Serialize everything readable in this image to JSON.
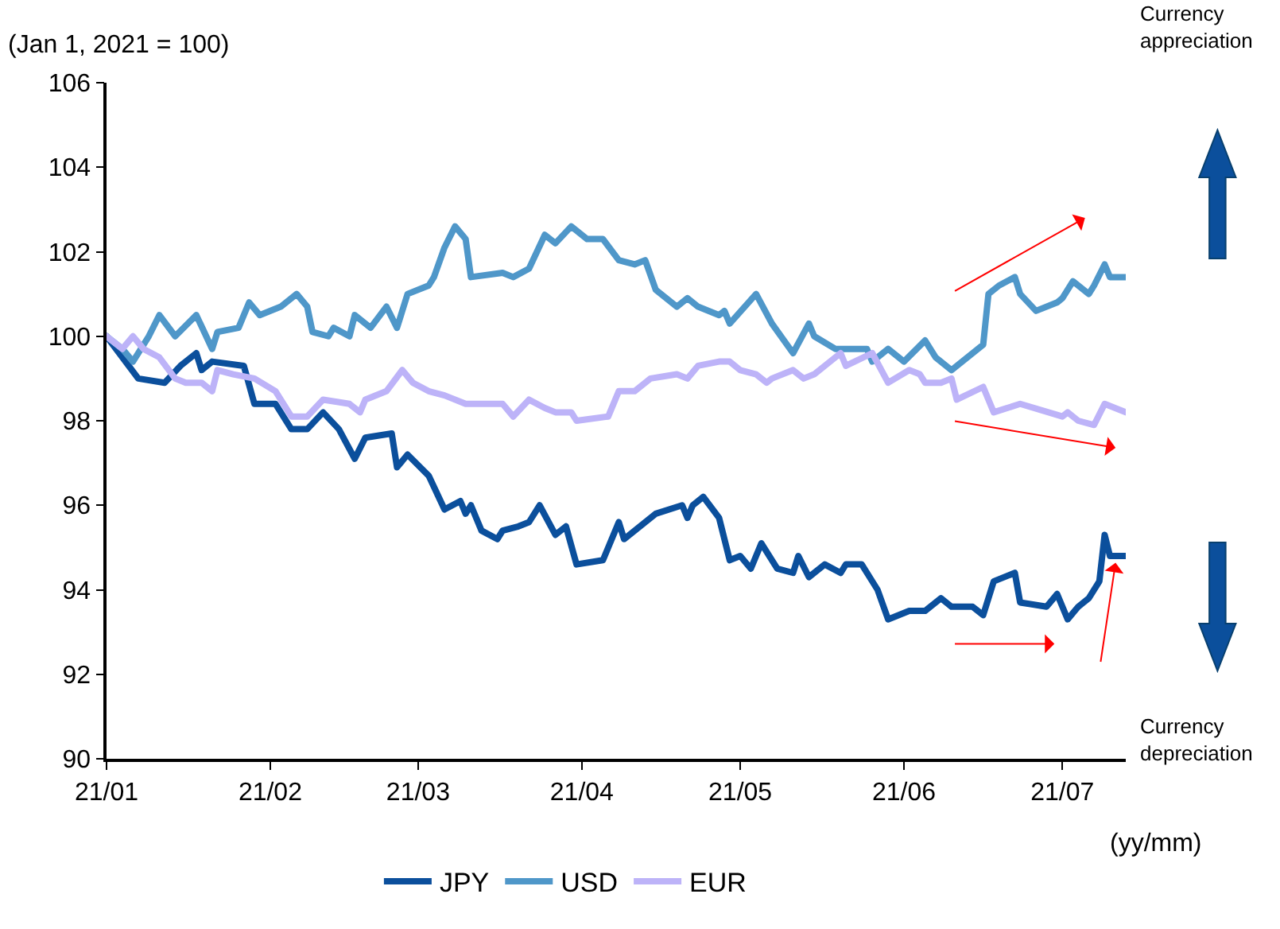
{
  "chart_data": {
    "type": "line",
    "ylabel": "(Jan 1, 2021 = 100)",
    "xlabel": "(yy/mm)",
    "annotations": [
      "Currency appreciation",
      "Currency depreciation"
    ],
    "xlim": [
      "2021-01-01",
      "2021-07-13"
    ],
    "xticks": [
      {
        "value": "2021-01-01",
        "label": "21/01"
      },
      {
        "value": "2021-02-01",
        "label": "21/02"
      },
      {
        "value": "2021-03-01",
        "label": "21/03"
      },
      {
        "value": "2021-04-01",
        "label": "21/04"
      },
      {
        "value": "2021-05-01",
        "label": "21/05"
      },
      {
        "value": "2021-06-01",
        "label": "21/06"
      },
      {
        "value": "2021-07-01",
        "label": "21/07"
      }
    ],
    "ylim": [
      90,
      106
    ],
    "yticks": [
      90,
      92,
      94,
      96,
      98,
      100,
      102,
      104,
      106
    ],
    "grid": false,
    "legend": "bottom",
    "marker": "none",
    "line_style": "solid",
    "series": [
      {
        "name": "JPY",
        "color": "#0b4f9c",
        "x": [
          "2021-01-01",
          "2021-01-07",
          "2021-01-12",
          "2021-01-15",
          "2021-01-18",
          "2021-01-19",
          "2021-01-21",
          "2021-01-27",
          "2021-01-29",
          "2021-02-02",
          "2021-02-05",
          "2021-02-08",
          "2021-02-11",
          "2021-02-14",
          "2021-02-17",
          "2021-02-19",
          "2021-02-24",
          "2021-02-25",
          "2021-02-27",
          "2021-03-03",
          "2021-03-06",
          "2021-03-09",
          "2021-03-10",
          "2021-03-11",
          "2021-03-13",
          "2021-03-16",
          "2021-03-17",
          "2021-03-20",
          "2021-03-22",
          "2021-03-24",
          "2021-03-27",
          "2021-03-29",
          "2021-03-31",
          "2021-04-05",
          "2021-04-08",
          "2021-04-09",
          "2021-04-15",
          "2021-04-20",
          "2021-04-21",
          "2021-04-22",
          "2021-04-24",
          "2021-04-27",
          "2021-04-29",
          "2021-05-01",
          "2021-05-03",
          "2021-05-05",
          "2021-05-08",
          "2021-05-11",
          "2021-05-12",
          "2021-05-14",
          "2021-05-17",
          "2021-05-20",
          "2021-05-21",
          "2021-05-24",
          "2021-05-27",
          "2021-05-29",
          "2021-06-02",
          "2021-06-05",
          "2021-06-08",
          "2021-06-10",
          "2021-06-14",
          "2021-06-16",
          "2021-06-18",
          "2021-06-22",
          "2021-06-23",
          "2021-06-28",
          "2021-06-30",
          "2021-07-02",
          "2021-07-04",
          "2021-07-06",
          "2021-07-08",
          "2021-07-09",
          "2021-07-10",
          "2021-07-13"
        ],
        "values": [
          100.0,
          99.0,
          98.9,
          99.3,
          99.6,
          99.2,
          99.4,
          99.3,
          98.4,
          98.4,
          97.8,
          97.8,
          98.2,
          97.8,
          97.1,
          97.6,
          97.7,
          96.9,
          97.2,
          96.7,
          95.9,
          96.1,
          95.8,
          96.0,
          95.4,
          95.2,
          95.4,
          95.5,
          95.6,
          96.0,
          95.3,
          95.5,
          94.6,
          94.7,
          95.6,
          95.2,
          95.8,
          96.0,
          95.7,
          96.0,
          96.2,
          95.7,
          94.7,
          94.8,
          94.5,
          95.1,
          94.5,
          94.4,
          94.8,
          94.3,
          94.6,
          94.4,
          94.6,
          94.6,
          94.0,
          93.3,
          93.5,
          93.5,
          93.8,
          93.6,
          93.6,
          93.4,
          94.2,
          94.4,
          93.7,
          93.6,
          93.9,
          93.3,
          93.6,
          93.8,
          94.2,
          95.3,
          94.8,
          94.8
        ]
      },
      {
        "name": "USD",
        "color": "#4f97c9",
        "x": [
          "2021-01-01",
          "2021-01-04",
          "2021-01-06",
          "2021-01-09",
          "2021-01-11",
          "2021-01-14",
          "2021-01-18",
          "2021-01-21",
          "2021-01-22",
          "2021-01-26",
          "2021-01-28",
          "2021-01-30",
          "2021-02-03",
          "2021-02-06",
          "2021-02-08",
          "2021-02-09",
          "2021-02-12",
          "2021-02-13",
          "2021-02-16",
          "2021-02-17",
          "2021-02-20",
          "2021-02-23",
          "2021-02-25",
          "2021-02-27",
          "2021-03-03",
          "2021-03-04",
          "2021-03-06",
          "2021-03-08",
          "2021-03-10",
          "2021-03-11",
          "2021-03-17",
          "2021-03-19",
          "2021-03-22",
          "2021-03-25",
          "2021-03-27",
          "2021-03-30",
          "2021-04-02",
          "2021-04-05",
          "2021-04-08",
          "2021-04-11",
          "2021-04-13",
          "2021-04-15",
          "2021-04-19",
          "2021-04-21",
          "2021-04-23",
          "2021-04-27",
          "2021-04-28",
          "2021-04-29",
          "2021-05-04",
          "2021-05-07",
          "2021-05-11",
          "2021-05-14",
          "2021-05-15",
          "2021-05-19",
          "2021-05-25",
          "2021-05-26",
          "2021-05-29",
          "2021-06-01",
          "2021-06-05",
          "2021-06-07",
          "2021-06-10",
          "2021-06-16",
          "2021-06-17",
          "2021-06-19",
          "2021-06-22",
          "2021-06-23",
          "2021-06-26",
          "2021-06-30",
          "2021-07-01",
          "2021-07-03",
          "2021-07-06",
          "2021-07-07",
          "2021-07-09",
          "2021-07-10",
          "2021-07-13"
        ],
        "values": [
          100.0,
          99.7,
          99.4,
          100.0,
          100.5,
          100.0,
          100.5,
          99.7,
          100.1,
          100.2,
          100.8,
          100.5,
          100.7,
          101.0,
          100.7,
          100.1,
          100.0,
          100.2,
          100.0,
          100.5,
          100.2,
          100.7,
          100.2,
          101.0,
          101.2,
          101.4,
          102.1,
          102.6,
          102.3,
          101.4,
          101.5,
          101.4,
          101.6,
          102.4,
          102.2,
          102.6,
          102.3,
          102.3,
          101.8,
          101.7,
          101.8,
          101.1,
          100.7,
          100.9,
          100.7,
          100.5,
          100.6,
          100.3,
          101.0,
          100.3,
          99.6,
          100.3,
          100.0,
          99.7,
          99.7,
          99.4,
          99.7,
          99.4,
          99.9,
          99.5,
          99.2,
          99.8,
          101.0,
          101.2,
          101.4,
          101.0,
          100.6,
          100.8,
          100.9,
          101.3,
          101.0,
          101.2,
          101.7,
          101.4,
          101.4
        ]
      },
      {
        "name": "EUR",
        "color": "#bdb3f8",
        "x": [
          "2021-01-01",
          "2021-01-04",
          "2021-01-06",
          "2021-01-08",
          "2021-01-11",
          "2021-01-14",
          "2021-01-16",
          "2021-01-19",
          "2021-01-21",
          "2021-01-22",
          "2021-01-25",
          "2021-01-29",
          "2021-02-02",
          "2021-02-05",
          "2021-02-08",
          "2021-02-11",
          "2021-02-16",
          "2021-02-18",
          "2021-02-19",
          "2021-02-23",
          "2021-02-26",
          "2021-02-28",
          "2021-03-03",
          "2021-03-06",
          "2021-03-10",
          "2021-03-17",
          "2021-03-19",
          "2021-03-22",
          "2021-03-25",
          "2021-03-27",
          "2021-03-30",
          "2021-03-31",
          "2021-04-06",
          "2021-04-08",
          "2021-04-11",
          "2021-04-14",
          "2021-04-19",
          "2021-04-21",
          "2021-04-23",
          "2021-04-27",
          "2021-04-29",
          "2021-05-01",
          "2021-05-04",
          "2021-05-06",
          "2021-05-07",
          "2021-05-11",
          "2021-05-13",
          "2021-05-15",
          "2021-05-20",
          "2021-05-21",
          "2021-05-26",
          "2021-05-29",
          "2021-06-02",
          "2021-06-04",
          "2021-06-05",
          "2021-06-08",
          "2021-06-10",
          "2021-06-11",
          "2021-06-16",
          "2021-06-18",
          "2021-06-23",
          "2021-07-01",
          "2021-07-02",
          "2021-07-04",
          "2021-07-07",
          "2021-07-09",
          "2021-07-13"
        ],
        "values": [
          100.0,
          99.7,
          100.0,
          99.7,
          99.5,
          99.0,
          98.9,
          98.9,
          98.7,
          99.2,
          99.1,
          99.0,
          98.7,
          98.1,
          98.1,
          98.5,
          98.4,
          98.2,
          98.5,
          98.7,
          99.2,
          98.9,
          98.7,
          98.6,
          98.4,
          98.4,
          98.1,
          98.5,
          98.3,
          98.2,
          98.2,
          98.0,
          98.1,
          98.7,
          98.7,
          99.0,
          99.1,
          99.0,
          99.3,
          99.4,
          99.4,
          99.2,
          99.1,
          98.9,
          99.0,
          99.2,
          99.0,
          99.1,
          99.6,
          99.3,
          99.6,
          98.9,
          99.2,
          99.1,
          98.9,
          98.9,
          99.0,
          98.5,
          98.8,
          98.2,
          98.4,
          98.1,
          98.2,
          98.0,
          97.9,
          98.4,
          98.2
        ]
      }
    ]
  }
}
